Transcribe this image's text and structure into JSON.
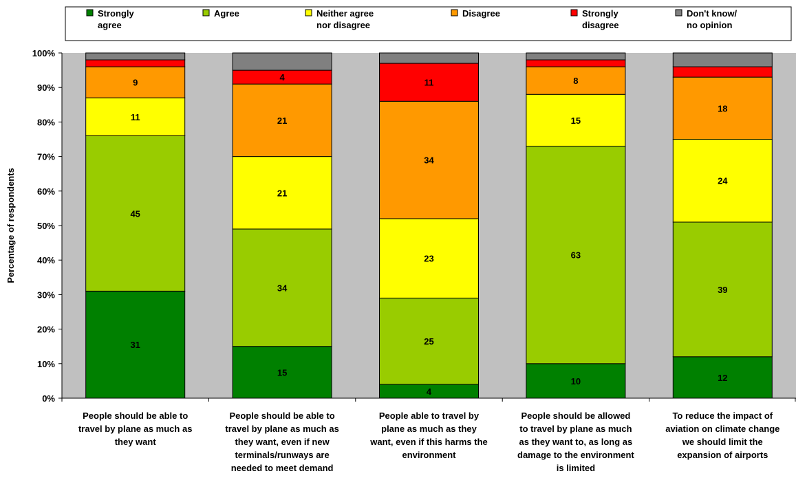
{
  "chart_data": {
    "type": "bar",
    "stacked": true,
    "percent_stacked": true,
    "ylabel": "Percentage of respondents",
    "ylim": [
      0,
      100
    ],
    "y_ticks": [
      "0%",
      "10%",
      "20%",
      "30%",
      "40%",
      "50%",
      "60%",
      "70%",
      "80%",
      "90%",
      "100%"
    ],
    "grid": false,
    "legend_position": "top",
    "categories": [
      [
        "People should be able to",
        "travel by plane as much as",
        "they want"
      ],
      [
        "People should be able to",
        "travel by plane as much as",
        "they want, even if new",
        "terminals/runways are",
        "needed to meet demand"
      ],
      [
        "People able to travel by",
        "plane as much as they",
        "want, even if this harms the",
        "environment"
      ],
      [
        "People should be allowed",
        "to travel by plane as much",
        "as they want to, as long as",
        "damage to the environment",
        "is limited"
      ],
      [
        "To reduce the impact of",
        "aviation on climate change",
        "we should limit the",
        "expansion of airports"
      ]
    ],
    "series": [
      {
        "name": [
          "Strongly",
          "agree"
        ],
        "color": "#008000",
        "values": [
          31,
          15,
          4,
          10,
          12
        ],
        "labels": [
          "31",
          "15",
          "4",
          "10",
          "12"
        ]
      },
      {
        "name": [
          "Agree"
        ],
        "color": "#99CC00",
        "values": [
          45,
          34,
          25,
          63,
          39
        ],
        "labels": [
          "45",
          "34",
          "25",
          "63",
          "39"
        ]
      },
      {
        "name": [
          "Neither agree",
          "nor disagree"
        ],
        "color": "#FFFF00",
        "values": [
          11,
          21,
          23,
          15,
          24
        ],
        "labels": [
          "11",
          "21",
          "23",
          "15",
          "24"
        ]
      },
      {
        "name": [
          "Disagree"
        ],
        "color": "#FF9900",
        "values": [
          9,
          21,
          34,
          8,
          18
        ],
        "labels": [
          "9",
          "21",
          "34",
          "8",
          "18"
        ]
      },
      {
        "name": [
          "Strongly",
          "disagree"
        ],
        "color": "#FF0000",
        "values": [
          2,
          4,
          11,
          2,
          3
        ],
        "labels": [
          "",
          "4",
          "11",
          "",
          ""
        ]
      },
      {
        "name": [
          "Don't know/",
          "no opinion"
        ],
        "color": "#808080",
        "values": [
          2,
          5,
          3,
          2,
          4
        ],
        "labels": [
          "",
          "",
          "",
          "",
          ""
        ]
      }
    ],
    "plot_background": "#C0C0C0"
  }
}
